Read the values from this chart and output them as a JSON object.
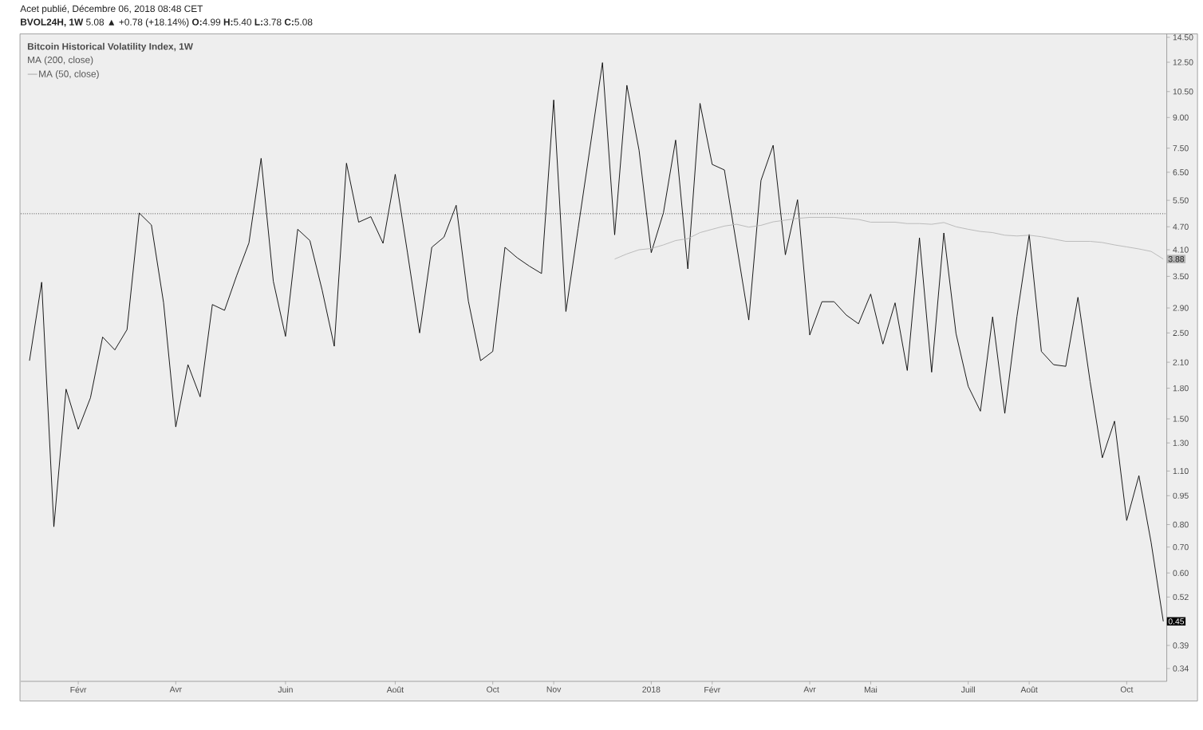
{
  "chart_data": {
    "type": "line",
    "title": "Bitcoin Historical Volatility Index, 1W",
    "subtitle": "**BVOL24H, 1W** 5.08 ▲ +0.78 (+18.14%) **O:**4.99 **H:**5.40 **L:**3.78 **C:**5.08",
    "annotations": [
      "Acet publié, Décembre 06, 2018 08:48 CET",
      "MA (200, close)"
    ],
    "x": [
      "2017-01-09",
      "2017-01-16",
      "2017-01-23",
      "2017-01-30",
      "2017-02-06",
      "2017-02-13",
      "2017-02-20",
      "2017-02-27",
      "2017-03-06",
      "2017-03-13",
      "2017-03-20",
      "2017-03-27",
      "2017-04-03",
      "2017-04-10",
      "2017-04-17",
      "2017-04-24",
      "2017-05-01",
      "2017-05-08",
      "2017-05-15",
      "2017-05-22",
      "2017-05-29",
      "2017-06-05",
      "2017-06-12",
      "2017-06-19",
      "2017-06-26",
      "2017-07-03",
      "2017-07-10",
      "2017-07-17",
      "2017-07-24",
      "2017-07-31",
      "2017-08-07",
      "2017-08-14",
      "2017-08-21",
      "2017-08-28",
      "2017-09-04",
      "2017-09-11",
      "2017-09-18",
      "2017-09-25",
      "2017-10-02",
      "2017-10-09",
      "2017-10-16",
      "2017-10-23",
      "2017-10-30",
      "2017-11-06",
      "2017-11-13",
      "2017-11-20",
      "2017-11-27",
      "2017-12-04",
      "2017-12-11",
      "2017-12-18",
      "2017-12-25",
      "2018-01-01",
      "2018-01-08",
      "2018-01-15",
      "2018-01-22",
      "2018-01-29",
      "2018-02-05",
      "2018-02-12",
      "2018-02-19",
      "2018-02-26",
      "2018-03-05",
      "2018-03-12",
      "2018-03-19",
      "2018-03-26",
      "2018-04-02",
      "2018-04-09",
      "2018-04-16",
      "2018-04-23",
      "2018-04-30",
      "2018-05-07",
      "2018-05-14",
      "2018-05-21",
      "2018-05-28",
      "2018-06-04",
      "2018-06-11",
      "2018-06-18",
      "2018-06-25",
      "2018-07-02",
      "2018-07-09",
      "2018-07-16",
      "2018-07-23",
      "2018-07-30",
      "2018-08-06",
      "2018-08-13",
      "2018-08-20",
      "2018-08-27",
      "2018-09-03",
      "2018-09-10",
      "2018-09-17",
      "2018-09-24",
      "2018-10-01",
      "2018-10-08",
      "2018-10-15",
      "2018-10-22"
    ],
    "series": [
      {
        "color": "#000000",
        "values": [
          2.12,
          3.38,
          0.79,
          1.79,
          1.41,
          1.7,
          2.44,
          2.26,
          2.55,
          5.1,
          4.75,
          2.99,
          1.43,
          2.07,
          1.71,
          2.96,
          2.86,
          3.52,
          4.27,
          7.06,
          3.4,
          2.45,
          4.63,
          4.33,
          3.23,
          2.31,
          6.86,
          4.83,
          4.99,
          4.26,
          6.42,
          4.04,
          2.5,
          4.16,
          4.42,
          5.34,
          3.02,
          2.12,
          2.24,
          4.16,
          3.91,
          3.72,
          3.56,
          9.99,
          2.84,
          4.65,
          7.6,
          12.47,
          4.48,
          10.9,
          7.41,
          4.03,
          5.11,
          7.87,
          3.66,
          9.79,
          6.81,
          6.59,
          4.22,
          2.7,
          6.19,
          7.63,
          3.98,
          5.52,
          2.47,
          3.01,
          3.01,
          2.78,
          2.64,
          3.15,
          2.34,
          2.99,
          2.0,
          4.4,
          1.98,
          4.53,
          2.49,
          1.82,
          1.57,
          2.75,
          1.55,
          2.76,
          4.49,
          2.24,
          2.07,
          2.05,
          3.09,
          1.87,
          1.19,
          1.48,
          0.82,
          1.07,
          0.72,
          0.45
        ],
        "value_labels": [
          null,
          null,
          null,
          null,
          null,
          null,
          null,
          null,
          null,
          null,
          null,
          null,
          null,
          null,
          null,
          null,
          null,
          null,
          null,
          null,
          null,
          null,
          null,
          null,
          null,
          null,
          null,
          null,
          null,
          null,
          null,
          null,
          null,
          null,
          null,
          null,
          null,
          null,
          null,
          null,
          null,
          null,
          null,
          null,
          null,
          null,
          null,
          null,
          null,
          null,
          null,
          null,
          null,
          null,
          null,
          null,
          null,
          null,
          null,
          null,
          null,
          null,
          null,
          null,
          null,
          null,
          null,
          null,
          null,
          null,
          null,
          null,
          null,
          null,
          null,
          null,
          null,
          null,
          null,
          null,
          null,
          null,
          null,
          null,
          null,
          null,
          null,
          null,
          null,
          null,
          null,
          null,
          null,
          "0.45"
        ]
      },
      {
        "name": "MA (50, close)",
        "color": "#b4b4b4",
        "values": [
          null,
          null,
          null,
          null,
          null,
          null,
          null,
          null,
          null,
          null,
          null,
          null,
          null,
          null,
          null,
          null,
          null,
          null,
          null,
          null,
          null,
          null,
          null,
          null,
          null,
          null,
          null,
          null,
          null,
          null,
          null,
          null,
          null,
          null,
          null,
          null,
          null,
          null,
          null,
          null,
          null,
          null,
          null,
          null,
          null,
          null,
          null,
          null,
          3.88,
          4.0,
          4.1,
          4.13,
          4.22,
          4.33,
          4.38,
          4.54,
          4.63,
          4.72,
          4.77,
          4.69,
          4.74,
          4.84,
          4.89,
          4.94,
          4.97,
          4.97,
          4.97,
          4.94,
          4.91,
          4.83,
          4.83,
          4.83,
          4.79,
          4.79,
          4.77,
          4.82,
          4.7,
          4.63,
          4.57,
          4.54,
          4.47,
          4.45,
          4.47,
          4.43,
          4.37,
          4.31,
          4.31,
          4.31,
          4.28,
          4.22,
          4.17,
          4.12,
          4.06,
          3.88
        ],
        "value_labels": [
          null,
          null,
          null,
          null,
          null,
          null,
          null,
          null,
          null,
          null,
          null,
          null,
          null,
          null,
          null,
          null,
          null,
          null,
          null,
          null,
          null,
          null,
          null,
          null,
          null,
          null,
          null,
          null,
          null,
          null,
          null,
          null,
          null,
          null,
          null,
          null,
          null,
          null,
          null,
          null,
          null,
          null,
          null,
          null,
          null,
          null,
          null,
          null,
          null,
          null,
          null,
          null,
          null,
          null,
          null,
          null,
          null,
          null,
          null,
          null,
          null,
          null,
          null,
          null,
          null,
          null,
          null,
          null,
          null,
          null,
          null,
          null,
          null,
          null,
          null,
          null,
          null,
          null,
          null,
          null,
          null,
          null,
          null,
          null,
          null,
          null,
          null,
          null,
          null,
          null,
          null,
          null,
          null,
          "3.88"
        ]
      }
    ],
    "xlim": [
      "2017-01-04",
      "2018-10-24"
    ],
    "xticks": [
      {
        "value": "2017-02-06",
        "label": "Févr"
      },
      {
        "value": "2017-04-03",
        "label": "Avr"
      },
      {
        "value": "2017-06-05",
        "label": "Juin"
      },
      {
        "value": "2017-08-07",
        "label": "Août"
      },
      {
        "value": "2017-10-02",
        "label": "Oct"
      },
      {
        "value": "2017-11-06",
        "label": "Nov"
      },
      {
        "value": "2018-01-01",
        "label": "2018"
      },
      {
        "value": "2018-02-05",
        "label": "Févr"
      },
      {
        "value": "2018-04-02",
        "label": "Avr"
      },
      {
        "value": "2018-05-07",
        "label": "Mai"
      },
      {
        "value": "2018-07-02",
        "label": "Juill"
      },
      {
        "value": "2018-08-06",
        "label": "Août"
      },
      {
        "value": "2018-10-01",
        "label": "Oct"
      }
    ],
    "ylim": [
      0.315,
      14.8
    ],
    "yticks": [
      {
        "value": 14.5,
        "label": "14.50"
      },
      {
        "value": 12.5,
        "label": "12.50"
      },
      {
        "value": 10.5,
        "label": "10.50"
      },
      {
        "value": 9,
        "label": "9.00"
      },
      {
        "value": 7.5,
        "label": "7.50"
      },
      {
        "value": 6.5,
        "label": "6.50"
      },
      {
        "value": 5.5,
        "label": "5.50"
      },
      {
        "value": 4.7,
        "label": "4.70"
      },
      {
        "value": 4.1,
        "label": "4.10"
      },
      {
        "value": 3.5,
        "label": "3.50"
      },
      {
        "value": 2.9,
        "label": "2.90"
      },
      {
        "value": 2.5,
        "label": "2.50"
      },
      {
        "value": 2.1,
        "label": "2.10"
      },
      {
        "value": 1.8,
        "label": "1.80"
      },
      {
        "value": 1.5,
        "label": "1.50"
      },
      {
        "value": 1.3,
        "label": "1.30"
      },
      {
        "value": 1.1,
        "label": "1.10"
      },
      0.95,
      {
        "value": 0.8,
        "label": "0.80"
      },
      {
        "value": 0.7,
        "label": "0.70"
      },
      {
        "value": 0.6,
        "label": "0.60"
      },
      0.52,
      0.39,
      0.34
    ],
    "log": "y",
    "legend": "top left",
    "ref_lines": [
      {
        "axis": "y",
        "value": 5.08,
        "color": "#000000",
        "line_style": "dotted"
      }
    ]
  }
}
